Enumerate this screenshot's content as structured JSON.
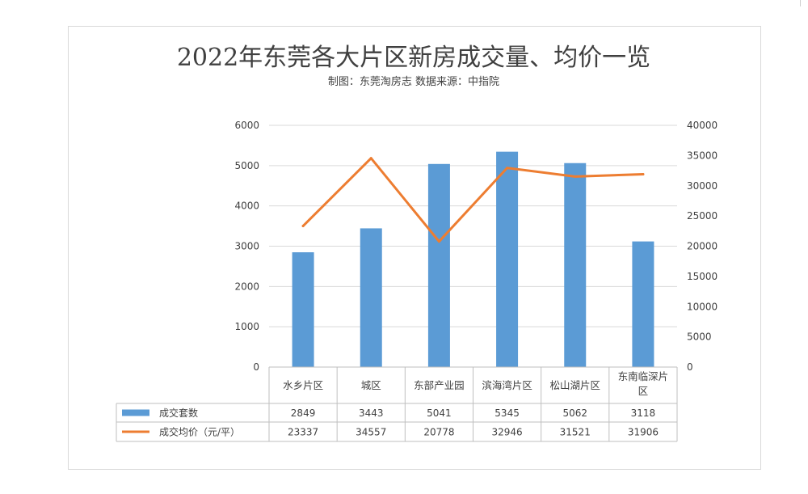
{
  "chart_data": {
    "type": "bar",
    "title": "2022年东莞各大片区新房成交量、均价一览",
    "subtitle": "制图：东莞淘房志      数据来源：中指院",
    "categories": [
      "水乡片区",
      "城区",
      "东部产业园",
      "滨海湾片区",
      "松山湖片区",
      "东南临深片区"
    ],
    "series": [
      {
        "name": "成交套数",
        "type": "bar",
        "axis": "left",
        "color": "#5b9bd5",
        "values": [
          2849,
          3443,
          5041,
          5345,
          5062,
          3118
        ]
      },
      {
        "name": "成交均价（元/平）",
        "type": "line",
        "axis": "right",
        "color": "#ed7d31",
        "values": [
          23337,
          34557,
          20778,
          32946,
          31521,
          31906
        ]
      }
    ],
    "y_left": {
      "min": 0,
      "max": 6000,
      "ticks": [
        0,
        1000,
        2000,
        3000,
        4000,
        5000,
        6000
      ]
    },
    "y_right": {
      "min": 0,
      "max": 40000,
      "ticks": [
        0,
        5000,
        10000,
        15000,
        20000,
        25000,
        30000,
        35000,
        40000
      ]
    },
    "grid": true,
    "legend": "data-table"
  }
}
